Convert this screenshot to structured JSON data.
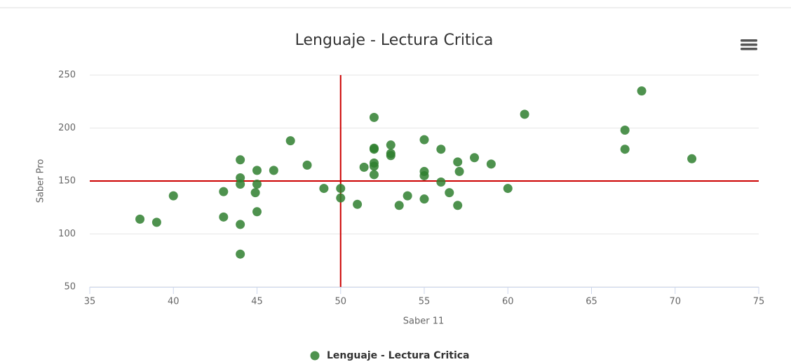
{
  "chart_data": {
    "type": "scatter",
    "title": "Lenguaje - Lectura Critica",
    "x_label": "Saber 11",
    "y_label": "Saber Pro",
    "xlim": [
      35,
      75
    ],
    "xticks": [
      35,
      40,
      45,
      50,
      55,
      60,
      65,
      70,
      75
    ],
    "ylim": [
      50,
      250
    ],
    "yticks": [
      50,
      100,
      150,
      200,
      250
    ],
    "grid": true,
    "plot_lines": {
      "x": 50,
      "y": 150,
      "color": "#cc0000"
    },
    "legend": "bottom",
    "series": [
      {
        "name": "Lenguaje - Lectura Critica",
        "color": "#2f7f2f",
        "x": [
          38,
          39,
          40,
          43,
          43,
          44,
          44,
          44,
          44,
          44,
          45,
          45,
          44.9,
          45,
          46,
          47,
          48,
          49,
          50,
          50,
          51,
          51.4,
          52,
          52,
          52,
          52,
          52,
          52,
          53,
          53,
          53,
          53.5,
          54,
          55,
          55,
          55,
          55,
          56,
          56,
          56.5,
          57,
          57.1,
          57,
          58,
          59,
          60,
          61,
          67,
          67,
          68,
          71
        ],
        "values": [
          114,
          111,
          136,
          140,
          116,
          170,
          153,
          147,
          109,
          81,
          160,
          147,
          139,
          121,
          160,
          188,
          165,
          143,
          143,
          134,
          128,
          163,
          210,
          181,
          180,
          167,
          164,
          156,
          184,
          176,
          174,
          127,
          136,
          189,
          159,
          155,
          133,
          180,
          149,
          139,
          168,
          159,
          127,
          172,
          166,
          143,
          213,
          198,
          180,
          235,
          171
        ]
      }
    ]
  }
}
